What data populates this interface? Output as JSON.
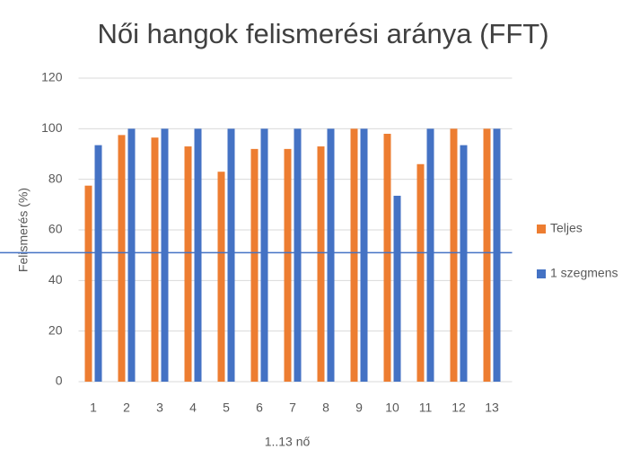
{
  "chart_data": {
    "type": "bar",
    "title": "Női hangok felismerési aránya (FFT)",
    "x_label": "1..13 nő",
    "y_label": "Felismerés (%)",
    "categories": [
      "1",
      "2",
      "3",
      "4",
      "5",
      "6",
      "7",
      "8",
      "9",
      "10",
      "11",
      "12",
      "13"
    ],
    "series": [
      {
        "name": "Teljes",
        "color": "#ed7d31",
        "values": [
          77.5,
          97.5,
          96.5,
          93,
          83,
          92,
          92,
          93,
          100,
          98,
          86,
          100,
          100
        ]
      },
      {
        "name": "1 szegmens",
        "color": "#4472c4",
        "values": [
          93.5,
          100,
          100,
          100,
          100,
          100,
          100,
          100,
          100,
          73.5,
          100,
          93.5,
          100
        ]
      }
    ],
    "reference_line": {
      "value": 51,
      "color": "#4472c4"
    },
    "ylim": [
      0,
      120
    ],
    "yticks": [
      0,
      20,
      40,
      60,
      80,
      100,
      120
    ],
    "grid": true,
    "legend": "right"
  }
}
